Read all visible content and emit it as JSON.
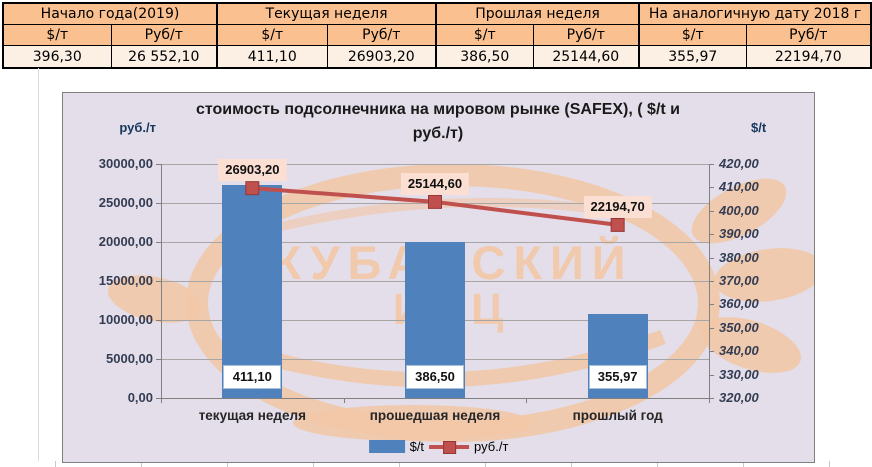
{
  "table": {
    "sub": {
      "usd": "$/т",
      "rub": "Руб/т"
    },
    "groups": [
      {
        "label": "Начало года(2019)",
        "usd": "396,30",
        "rub": "26 552,10"
      },
      {
        "label": "Текущая неделя",
        "usd": "411,10",
        "rub": "26903,20"
      },
      {
        "label": "Прошлая неделя",
        "usd": "386,50",
        "rub": "25144,60"
      },
      {
        "label": "На аналогичную дату 2018 г",
        "usd": "355,97",
        "rub": "22194,70"
      }
    ]
  },
  "chart_data": {
    "type": "bar+line",
    "title": "стоимость подсолнечника на мировом рынке (SAFEX), ( $/t и руб./т)",
    "title_lines": [
      "стоимость подсолнечника на мировом рынке (SAFEX), ( $/t и",
      "руб./т)"
    ],
    "categories": [
      "текущая неделя",
      "прошедшая неделя",
      "прошлый год"
    ],
    "series": [
      {
        "name": "$/t",
        "type": "bar",
        "axis": "right",
        "color": "#4f81bd",
        "values": [
          411.1,
          386.5,
          355.97
        ],
        "labels": [
          "411,10",
          "386,50",
          "355,97"
        ]
      },
      {
        "name": "руб./т",
        "type": "line",
        "axis": "left",
        "color": "#c0504d",
        "values": [
          26903.2,
          25144.6,
          22194.7
        ],
        "labels": [
          "26903,20",
          "25144,60",
          "22194,70"
        ]
      }
    ],
    "left_axis": {
      "title": "руб./т",
      "min": 0,
      "max": 30000,
      "step": 5000,
      "tick_labels": [
        "30000,00",
        "25000,00",
        "20000,00",
        "15000,00",
        "10000,00",
        "5000,00",
        "0,00"
      ]
    },
    "right_axis": {
      "title": "$/t",
      "min": 320,
      "max": 420,
      "step": 10,
      "tick_labels": [
        "420,00",
        "410,00",
        "400,00",
        "390,00",
        "380,00",
        "370,00",
        "360,00",
        "350,00",
        "340,00",
        "330,00",
        "320,00"
      ]
    },
    "legend_position": "bottom",
    "grid": "horizontal-major",
    "watermark_lines": [
      "КУБАНСКИЙ",
      "ИКЦ"
    ]
  },
  "colors": {
    "table_header_bg": "#fac08f",
    "table_row_bg": "#fcefe4",
    "chart_bg": "#e3dee9",
    "gridline": "#a6a6a6",
    "bar": "#4f81bd",
    "line": "#c0504d",
    "line_label_bg": "#fbdfd2",
    "bar_label_bg": "#ffffff",
    "watermark": "#f2c8a9",
    "axis_title": "#17375d"
  }
}
